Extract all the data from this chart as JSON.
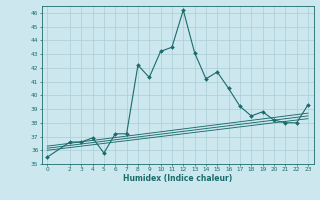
{
  "xlabel": "Humidex (Indice chaleur)",
  "bg_color": "#cce8ee",
  "grid_color": "#aacdd6",
  "line_color": "#1a6b6b",
  "xlim": [
    -0.5,
    23.5
  ],
  "ylim": [
    35,
    46.5
  ],
  "xticks": [
    0,
    2,
    3,
    4,
    5,
    6,
    7,
    8,
    9,
    10,
    11,
    12,
    13,
    14,
    15,
    16,
    17,
    18,
    19,
    20,
    21,
    22,
    23
  ],
  "yticks": [
    35,
    36,
    37,
    38,
    39,
    40,
    41,
    42,
    43,
    44,
    45,
    46
  ],
  "main_x": [
    0,
    2,
    3,
    4,
    5,
    6,
    7,
    8,
    9,
    10,
    11,
    12,
    13,
    14,
    15,
    16,
    17,
    18,
    19,
    20,
    21,
    22,
    23
  ],
  "main_y": [
    35.5,
    36.6,
    36.6,
    36.9,
    35.8,
    37.2,
    37.2,
    42.2,
    41.3,
    43.2,
    43.5,
    46.2,
    43.1,
    41.2,
    41.7,
    40.5,
    39.2,
    38.5,
    38.8,
    38.2,
    38.0,
    38.0,
    39.3
  ],
  "env_lines": [
    {
      "x": [
        0,
        23
      ],
      "y": [
        36.0,
        38.3
      ]
    },
    {
      "x": [
        0,
        23
      ],
      "y": [
        36.15,
        38.5
      ]
    },
    {
      "x": [
        0,
        23
      ],
      "y": [
        36.3,
        38.7
      ]
    }
  ]
}
